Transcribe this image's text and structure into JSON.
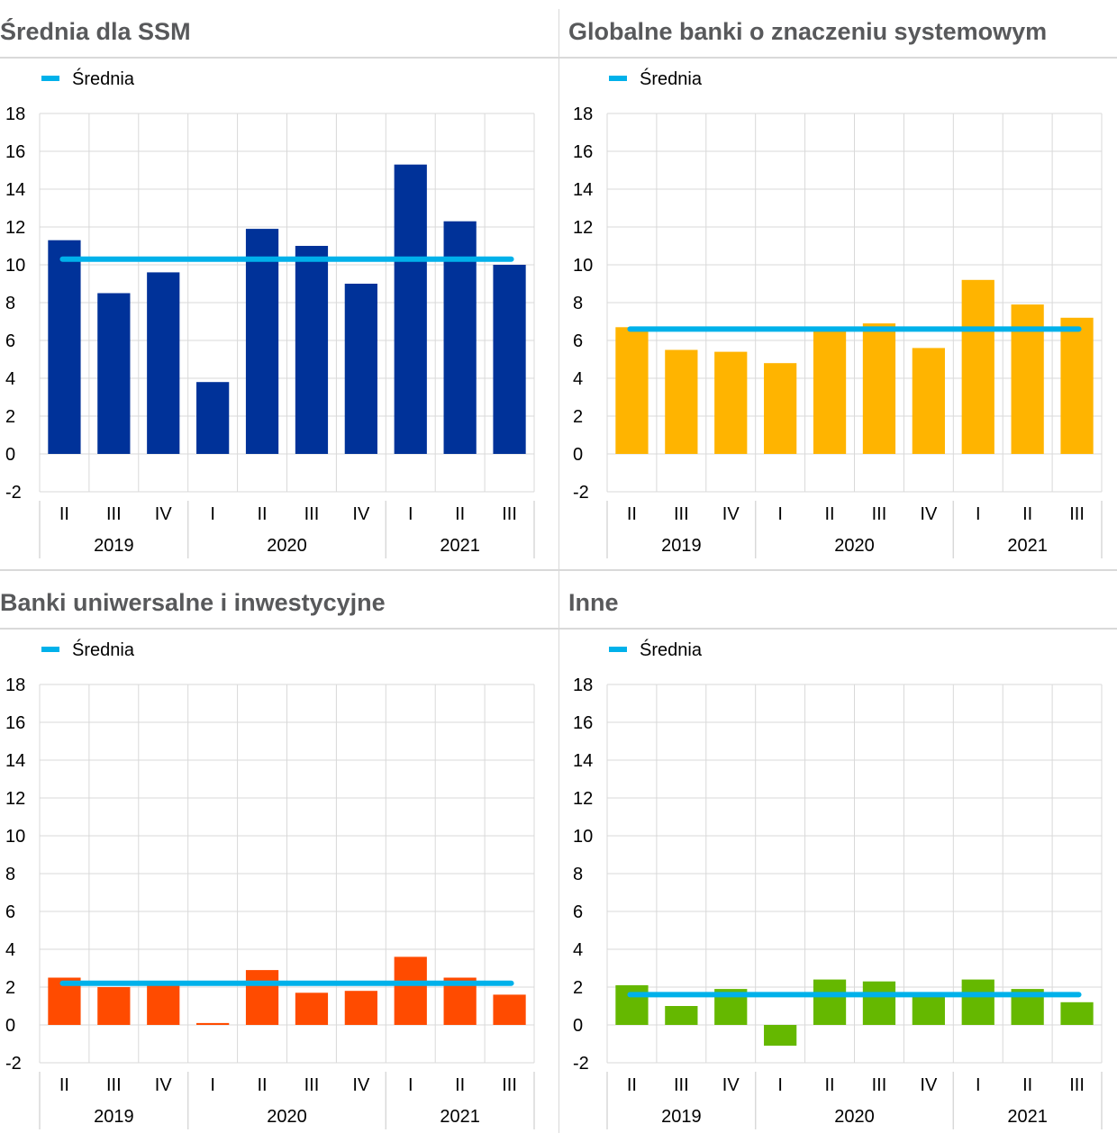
{
  "legend_label": "Średnia",
  "colors": {
    "mean_line": "#00b1ea",
    "grid": "#d9d9d9",
    "axis_text": "#000000",
    "title_text": "#58595b"
  },
  "chart_data": [
    {
      "type": "bar",
      "title": "Średnia dla SSM",
      "color": "#003299",
      "categories": [
        "II",
        "III",
        "IV",
        "I",
        "II",
        "III",
        "IV",
        "I",
        "II",
        "III"
      ],
      "years": [
        {
          "label": "2019",
          "span": 3
        },
        {
          "label": "2020",
          "span": 4
        },
        {
          "label": "2021",
          "span": 3
        }
      ],
      "series": [
        {
          "values": [
            11.3,
            8.5,
            9.6,
            3.8,
            11.9,
            11.0,
            9.0,
            15.3,
            12.3,
            10.0
          ]
        },
        {
          "name": "Średnia",
          "type": "line",
          "values": [
            10.3,
            10.3,
            10.3,
            10.3,
            10.3,
            10.3,
            10.3,
            10.3,
            10.3,
            10.3
          ]
        }
      ],
      "ylim": [
        -2,
        18
      ],
      "yticks": [
        18,
        16,
        14,
        12,
        10,
        8,
        6,
        4,
        2,
        0,
        -2
      ],
      "grid": true,
      "legend": "top-left"
    },
    {
      "type": "bar",
      "title": "Globalne banki o znaczeniu systemowym",
      "color": "#ffb400",
      "categories": [
        "II",
        "III",
        "IV",
        "I",
        "II",
        "III",
        "IV",
        "I",
        "II",
        "III"
      ],
      "years": [
        {
          "label": "2019",
          "span": 3
        },
        {
          "label": "2020",
          "span": 4
        },
        {
          "label": "2021",
          "span": 3
        }
      ],
      "series": [
        {
          "values": [
            6.7,
            5.5,
            5.4,
            4.8,
            6.5,
            6.9,
            5.6,
            9.2,
            7.9,
            7.2
          ]
        },
        {
          "name": "Średnia",
          "type": "line",
          "values": [
            6.6,
            6.6,
            6.6,
            6.6,
            6.6,
            6.6,
            6.6,
            6.6,
            6.6,
            6.6
          ]
        }
      ],
      "ylim": [
        -2,
        18
      ],
      "yticks": [
        18,
        16,
        14,
        12,
        10,
        8,
        6,
        4,
        2,
        0,
        -2
      ],
      "grid": true,
      "legend": "top-left"
    },
    {
      "type": "bar",
      "title": "Banki uniwersalne i inwestycyjne",
      "color": "#ff4b00",
      "categories": [
        "II",
        "III",
        "IV",
        "I",
        "II",
        "III",
        "IV",
        "I",
        "II",
        "III"
      ],
      "years": [
        {
          "label": "2019",
          "span": 3
        },
        {
          "label": "2020",
          "span": 4
        },
        {
          "label": "2021",
          "span": 3
        }
      ],
      "series": [
        {
          "values": [
            2.5,
            2.0,
            2.2,
            0.1,
            2.9,
            1.7,
            1.8,
            3.6,
            2.5,
            1.6
          ]
        },
        {
          "name": "Średnia",
          "type": "line",
          "values": [
            2.2,
            2.2,
            2.2,
            2.2,
            2.2,
            2.2,
            2.2,
            2.2,
            2.2,
            2.2
          ]
        }
      ],
      "ylim": [
        -2,
        18
      ],
      "yticks": [
        18,
        16,
        14,
        12,
        10,
        8,
        6,
        4,
        2,
        0,
        -2
      ],
      "grid": true,
      "legend": "top-left"
    },
    {
      "type": "bar",
      "title": "Inne",
      "color": "#65b800",
      "categories": [
        "II",
        "III",
        "IV",
        "I",
        "II",
        "III",
        "IV",
        "I",
        "II",
        "III"
      ],
      "years": [
        {
          "label": "2019",
          "span": 3
        },
        {
          "label": "2020",
          "span": 4
        },
        {
          "label": "2021",
          "span": 3
        }
      ],
      "series": [
        {
          "values": [
            2.1,
            1.0,
            1.9,
            -1.1,
            2.4,
            2.3,
            1.6,
            2.4,
            1.9,
            1.2
          ]
        },
        {
          "name": "Średnia",
          "type": "line",
          "values": [
            1.6,
            1.6,
            1.6,
            1.6,
            1.6,
            1.6,
            1.6,
            1.6,
            1.6,
            1.6
          ]
        }
      ],
      "ylim": [
        -2,
        18
      ],
      "yticks": [
        18,
        16,
        14,
        12,
        10,
        8,
        6,
        4,
        2,
        0,
        -2
      ],
      "grid": true,
      "legend": "top-left"
    }
  ]
}
